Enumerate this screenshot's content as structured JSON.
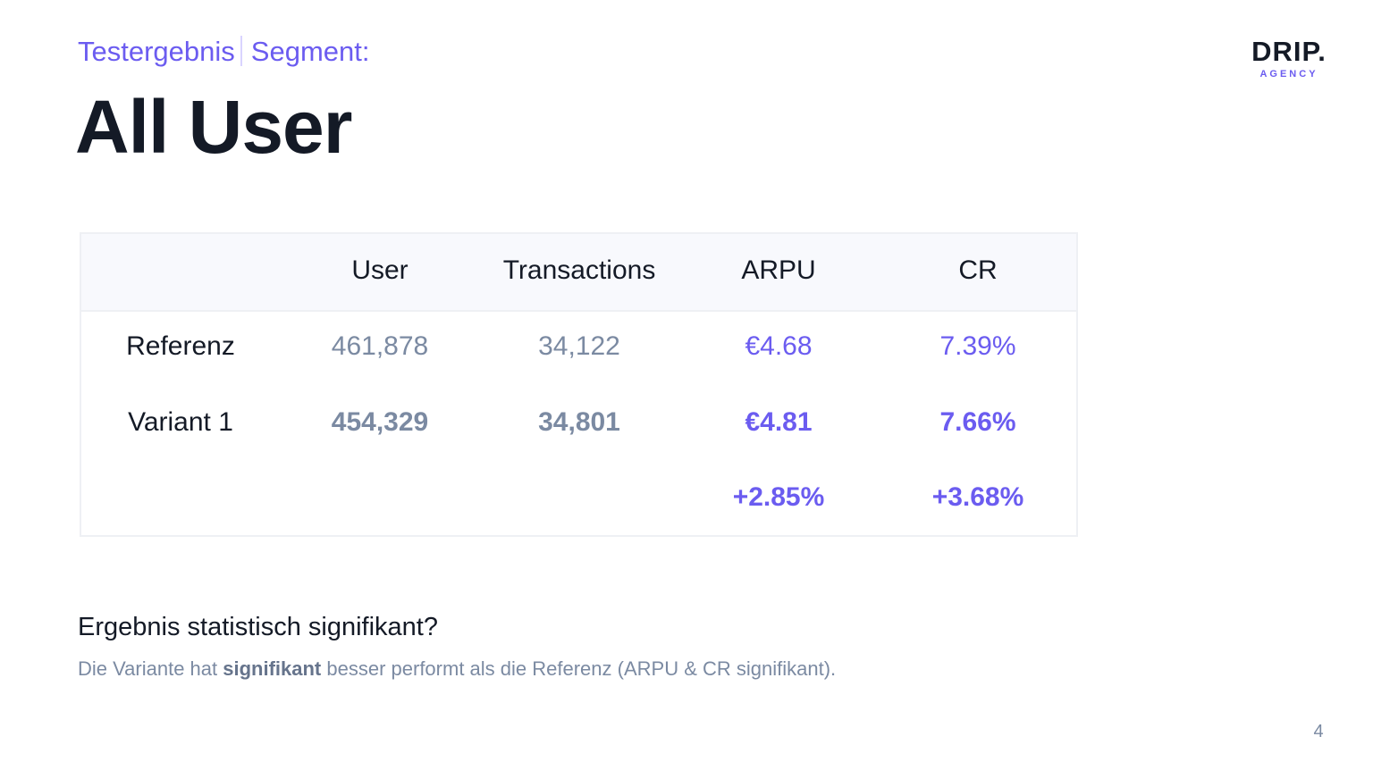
{
  "header": {
    "kicker_left": "Testergebnis",
    "kicker_right": "Segment:",
    "title": "All User"
  },
  "logo": {
    "main": "DRIP.",
    "sub": "AGENCY"
  },
  "table": {
    "columns": [
      "",
      "User",
      "Transactions",
      "ARPU",
      "CR"
    ],
    "rows": [
      {
        "label": "Referenz",
        "user": "461,878",
        "transactions": "34,122",
        "arpu": "€4.68",
        "cr": "7.39%"
      },
      {
        "label": "Variant 1",
        "user": "454,329",
        "transactions": "34,801",
        "arpu": "€4.81",
        "cr": "7.66%"
      },
      {
        "label": "",
        "user": "",
        "transactions": "",
        "arpu": "+2.85%",
        "cr": "+3.68%"
      }
    ]
  },
  "significance": {
    "question": "Ergebnis statistisch signifikant?",
    "answer_before": "Die Variante hat ",
    "answer_bold": "signifikant",
    "answer_after": " besser performt als die Referenz (ARPU & CR signifikant)."
  },
  "footer": {
    "page_number": "4"
  },
  "colors": {
    "accent": "#6b5cf0",
    "text_dark": "#141a26",
    "text_muted": "#7b8aa2",
    "header_bg": "#f8f9fd"
  }
}
